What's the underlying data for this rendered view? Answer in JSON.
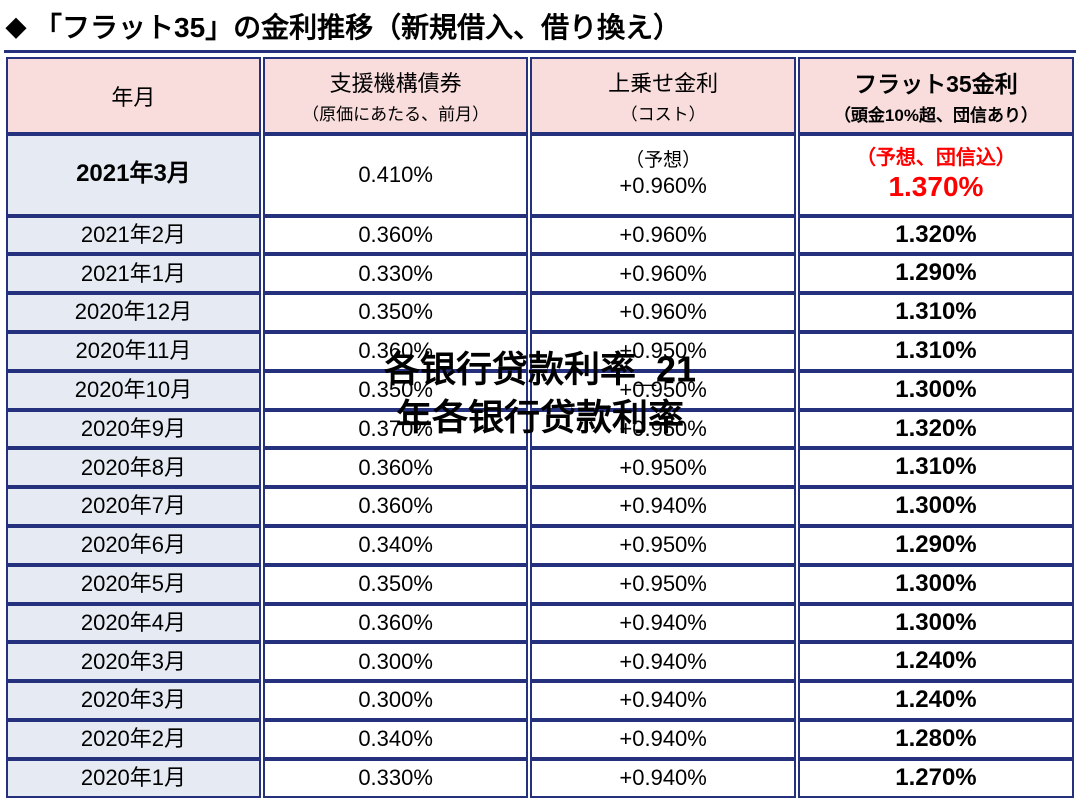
{
  "title": "「フラット35」の金利推移（新規借入、借り換え）",
  "columns": [
    {
      "main": "年月",
      "sub": ""
    },
    {
      "main": "支援機構債券",
      "sub": "（原価にあたる、前月）"
    },
    {
      "main": "上乗せ金利",
      "sub": "（コスト）"
    },
    {
      "main": "フラット35金利",
      "sub": "（頭金10%超、団信あり）"
    }
  ],
  "featured": {
    "period": "2021年3月",
    "bond": "0.410%",
    "cost_sub": "（予想）",
    "cost_val": "+0.960%",
    "rate_sub": "（予想、団信込）",
    "rate_val": "1.370%"
  },
  "rows": [
    {
      "period": "2021年2月",
      "bond": "0.360%",
      "cost": "+0.960%",
      "rate": "1.320%"
    },
    {
      "period": "2021年1月",
      "bond": "0.330%",
      "cost": "+0.960%",
      "rate": "1.290%"
    },
    {
      "period": "2020年12月",
      "bond": "0.350%",
      "cost": "+0.960%",
      "rate": "1.310%"
    },
    {
      "period": "2020年11月",
      "bond": "0.360%",
      "cost": "+0.950%",
      "rate": "1.310%"
    },
    {
      "period": "2020年10月",
      "bond": "0.350%",
      "cost": "+0.950%",
      "rate": "1.300%"
    },
    {
      "period": "2020年9月",
      "bond": "0.370%",
      "cost": "+0.950%",
      "rate": "1.320%"
    },
    {
      "period": "2020年8月",
      "bond": "0.360%",
      "cost": "+0.950%",
      "rate": "1.310%"
    },
    {
      "period": "2020年7月",
      "bond": "0.360%",
      "cost": "+0.940%",
      "rate": "1.300%"
    },
    {
      "period": "2020年6月",
      "bond": "0.340%",
      "cost": "+0.950%",
      "rate": "1.290%"
    },
    {
      "period": "2020年5月",
      "bond": "0.350%",
      "cost": "+0.950%",
      "rate": "1.300%"
    },
    {
      "period": "2020年4月",
      "bond": "0.360%",
      "cost": "+0.940%",
      "rate": "1.300%"
    },
    {
      "period": "2020年3月",
      "bond": "0.300%",
      "cost": "+0.940%",
      "rate": "1.240%"
    },
    {
      "period": "2020年3月",
      "bond": "0.300%",
      "cost": "+0.940%",
      "rate": "1.240%"
    },
    {
      "period": "2020年2月",
      "bond": "0.340%",
      "cost": "+0.940%",
      "rate": "1.280%"
    },
    {
      "period": "2020年1月",
      "bond": "0.330%",
      "cost": "+0.940%",
      "rate": "1.270%"
    }
  ],
  "watermark": {
    "line1": "各银行贷款利率_21",
    "line2": "年各银行贷款利率"
  },
  "colors": {
    "border": "#25317c",
    "header_bg": "#f9dcdc",
    "period_bg": "#e6ebf3",
    "highlight": "#ff0000",
    "text": "#000000",
    "bg": "#ffffff"
  }
}
